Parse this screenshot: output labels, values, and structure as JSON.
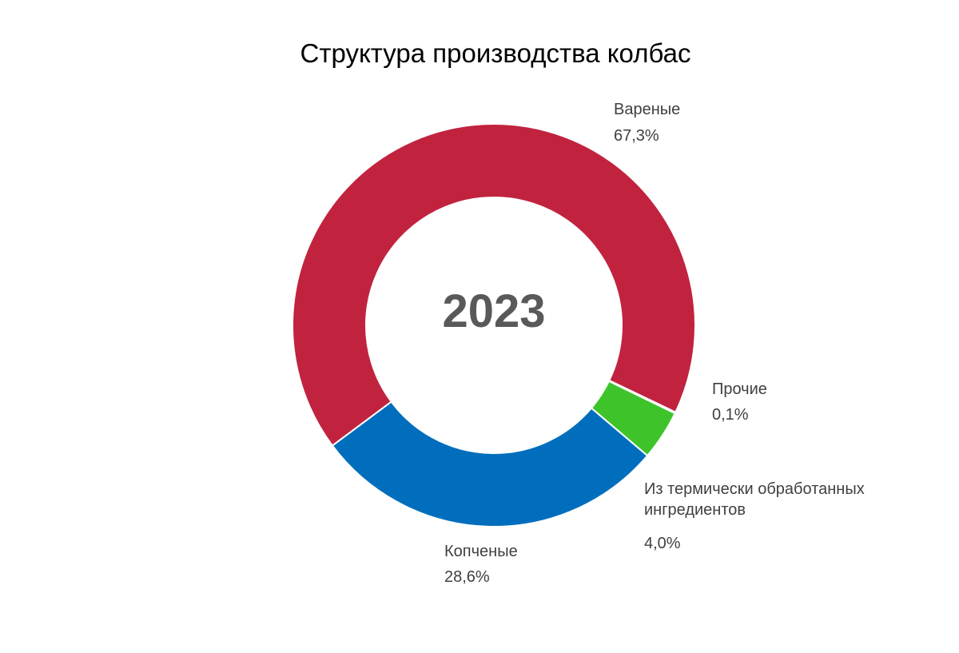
{
  "chart_data": {
    "type": "donut",
    "title": "Структура производства колбас",
    "center_label": "2023",
    "categories": [
      "Вареные",
      "Прочие",
      "Из термически обработанных ингредиентов",
      "Копченые"
    ],
    "values": [
      67.3,
      0.1,
      4.0,
      28.6
    ],
    "value_labels": [
      "67,3%",
      "0,1%",
      "4,0%",
      "28,6%"
    ],
    "colors": [
      "#c1233f",
      "#3ec42a",
      "#3ec42a",
      "#006ebd"
    ]
  }
}
